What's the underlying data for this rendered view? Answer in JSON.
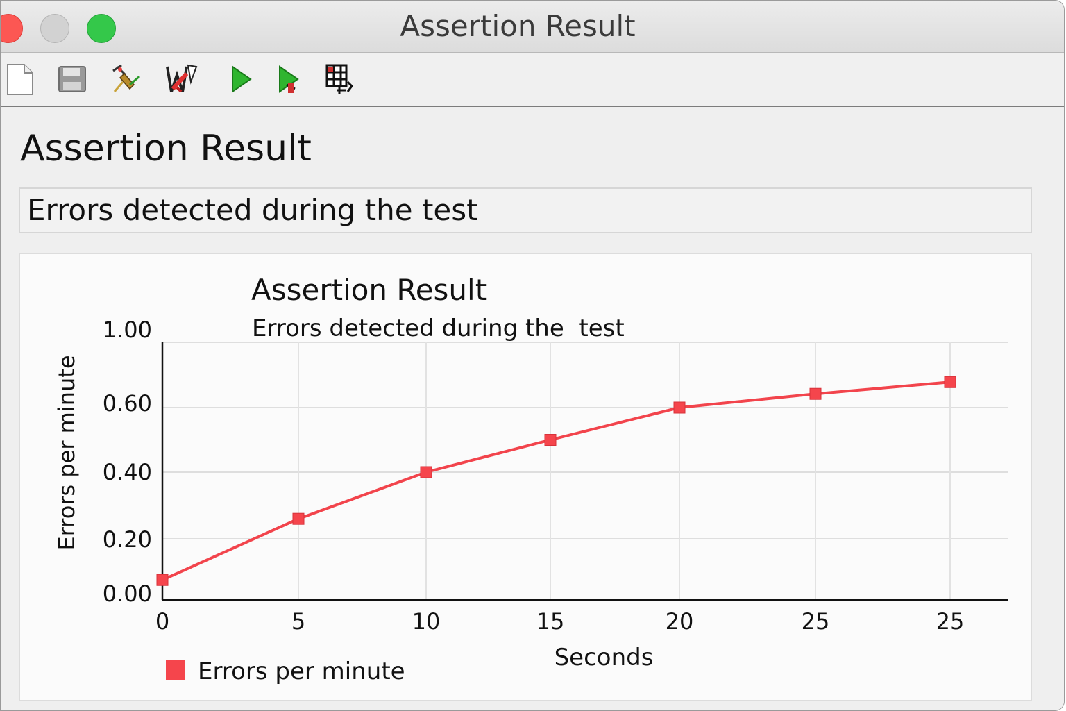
{
  "window": {
    "title": "Assertion Result"
  },
  "toolbar": {
    "buttons": [
      {
        "name": "new-icon"
      },
      {
        "name": "save-icon"
      },
      {
        "name": "clear-icon"
      },
      {
        "name": "clear-all-icon"
      },
      {
        "name": "start-icon"
      },
      {
        "name": "start-no-pauses-icon"
      },
      {
        "name": "remote-start-icon"
      }
    ]
  },
  "panel": {
    "title": "Assertion Result",
    "name_value": "Errors detected during the test"
  },
  "colors": {
    "series": "#f2444c",
    "marker": "#f5454c"
  },
  "chart_data": {
    "type": "line",
    "title": "Assertion Result",
    "subtitle": "Errors detected during the  test",
    "xlabel": "Seconds",
    "ylabel": "Errors per minute",
    "x_tick_labels": [
      "0",
      "5",
      "10",
      "15",
      "20",
      "25",
      "25"
    ],
    "y_tick_labels": [
      "0.00",
      "0.20",
      "0.40",
      "0.60",
      "1.00"
    ],
    "y_tick_values": [
      0.0,
      0.2,
      0.4,
      0.6,
      1.0
    ],
    "grid": true,
    "legend_position": "bottom-left",
    "series": [
      {
        "name": "Errors per minute",
        "values": [
          0.05,
          0.26,
          0.4,
          0.5,
          0.6,
          0.67,
          0.73
        ]
      }
    ]
  }
}
